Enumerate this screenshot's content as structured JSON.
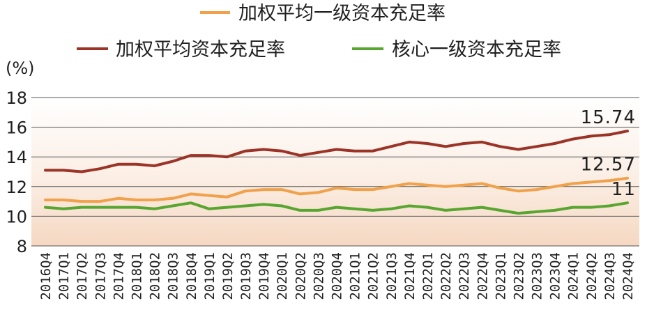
{
  "chart_data": {
    "type": "line",
    "ylabel": "(%)",
    "ylim": [
      8,
      18
    ],
    "yticks": [
      8,
      10,
      12,
      14,
      16,
      18
    ],
    "grid": true,
    "legend_position": "top",
    "categories": [
      "2016Q4",
      "2017Q1",
      "2017Q2",
      "2017Q3",
      "2017Q4",
      "2018Q1",
      "2018Q2",
      "2018Q3",
      "2018Q4",
      "2019Q1",
      "2019Q2",
      "2019Q3",
      "2019Q4",
      "2020Q1",
      "2020Q2",
      "2020Q3",
      "2020Q4",
      "2021Q1",
      "2021Q2",
      "2021Q3",
      "2021Q4",
      "2022Q1",
      "2022Q2",
      "2022Q3",
      "2022Q4",
      "2023Q1",
      "2023Q2",
      "2023Q3",
      "2023Q4",
      "2024Q1",
      "2024Q2",
      "2024Q3",
      "2024Q4"
    ],
    "series": [
      {
        "name": "加权平均一级资本充足率",
        "color": "#f0a14a",
        "values": [
          11.1,
          11.1,
          11.0,
          11.0,
          11.2,
          11.1,
          11.1,
          11.2,
          11.5,
          11.4,
          11.3,
          11.7,
          11.8,
          11.8,
          11.5,
          11.6,
          11.9,
          11.8,
          11.8,
          12.0,
          12.2,
          12.1,
          12.0,
          12.1,
          12.2,
          11.9,
          11.7,
          11.8,
          12.0,
          12.2,
          12.3,
          12.4,
          12.57
        ],
        "end_label": "12.57"
      },
      {
        "name": "加权平均资本充足率",
        "color": "#9b3427",
        "values": [
          13.1,
          13.1,
          13.0,
          13.2,
          13.5,
          13.5,
          13.4,
          13.7,
          14.1,
          14.1,
          14.0,
          14.4,
          14.5,
          14.4,
          14.1,
          14.3,
          14.5,
          14.4,
          14.4,
          14.7,
          15.0,
          14.9,
          14.7,
          14.9,
          15.0,
          14.7,
          14.5,
          14.7,
          14.9,
          15.2,
          15.4,
          15.5,
          15.74
        ],
        "end_label": "15.74"
      },
      {
        "name": "核心一级资本充足率",
        "color": "#58a630",
        "values": [
          10.6,
          10.5,
          10.6,
          10.6,
          10.6,
          10.6,
          10.5,
          10.7,
          10.9,
          10.5,
          10.6,
          10.7,
          10.8,
          10.7,
          10.4,
          10.4,
          10.6,
          10.5,
          10.4,
          10.5,
          10.7,
          10.6,
          10.4,
          10.5,
          10.6,
          10.4,
          10.2,
          10.3,
          10.4,
          10.6,
          10.6,
          10.7,
          10.9
        ],
        "end_label": "11"
      }
    ]
  }
}
